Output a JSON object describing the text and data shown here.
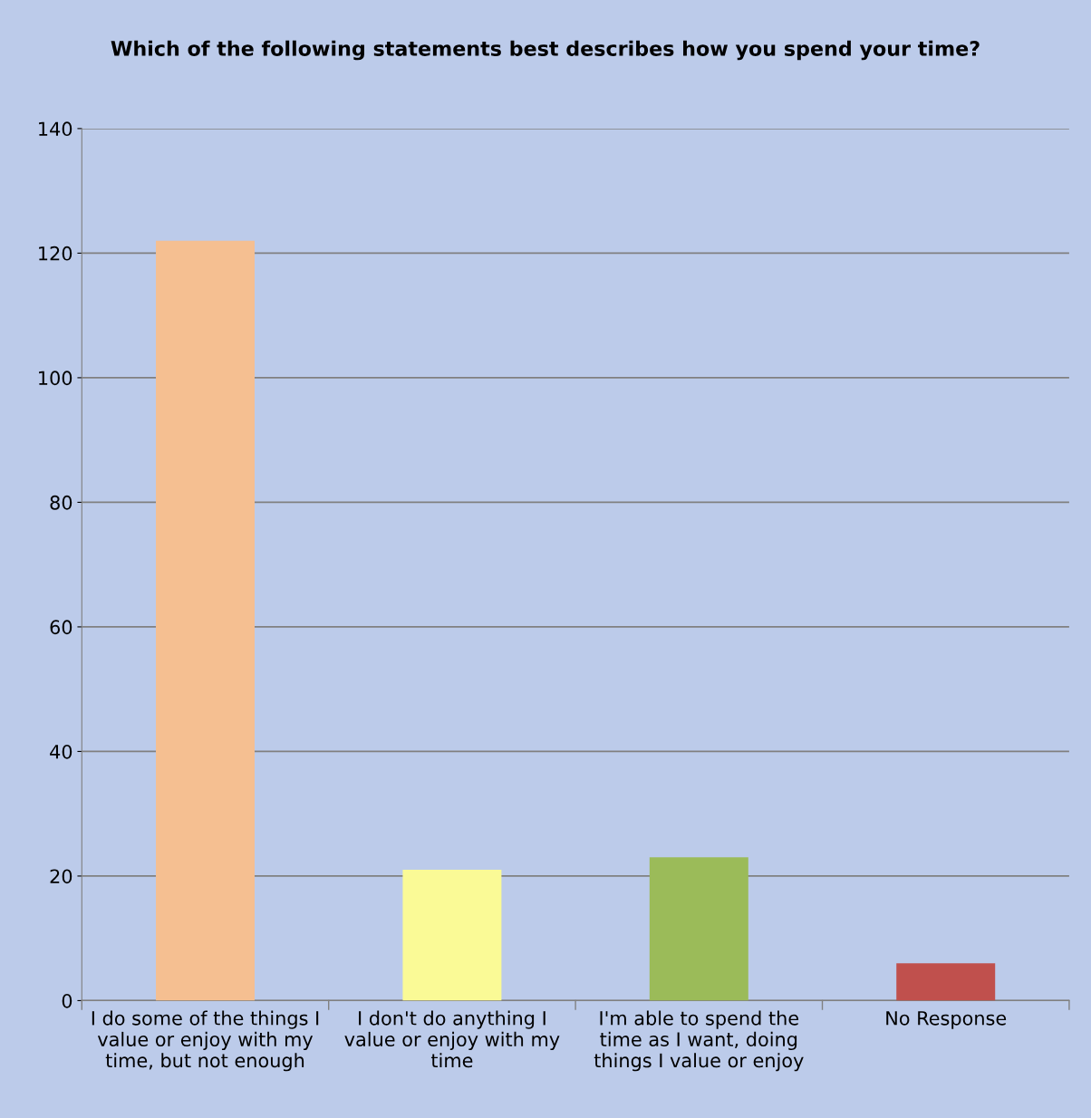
{
  "chart_data": {
    "type": "bar",
    "title": "Which of the following statements best describes how you spend your time?",
    "categories": [
      "I do some of the things I\nvalue or enjoy with my\ntime, but not enough",
      "I don't do anything I\nvalue or enjoy with my\ntime",
      "I'm able to spend the\ntime as I want, doing\nthings I value or enjoy",
      "No Response"
    ],
    "values": [
      122,
      21,
      23,
      6
    ],
    "colors": [
      "#f5bf91",
      "#fafa96",
      "#9bbb59",
      "#c0504d"
    ],
    "ylim": [
      0,
      140
    ],
    "yticks": [
      0,
      20,
      40,
      60,
      80,
      100,
      120,
      140
    ],
    "grid": "y",
    "legend": false
  }
}
